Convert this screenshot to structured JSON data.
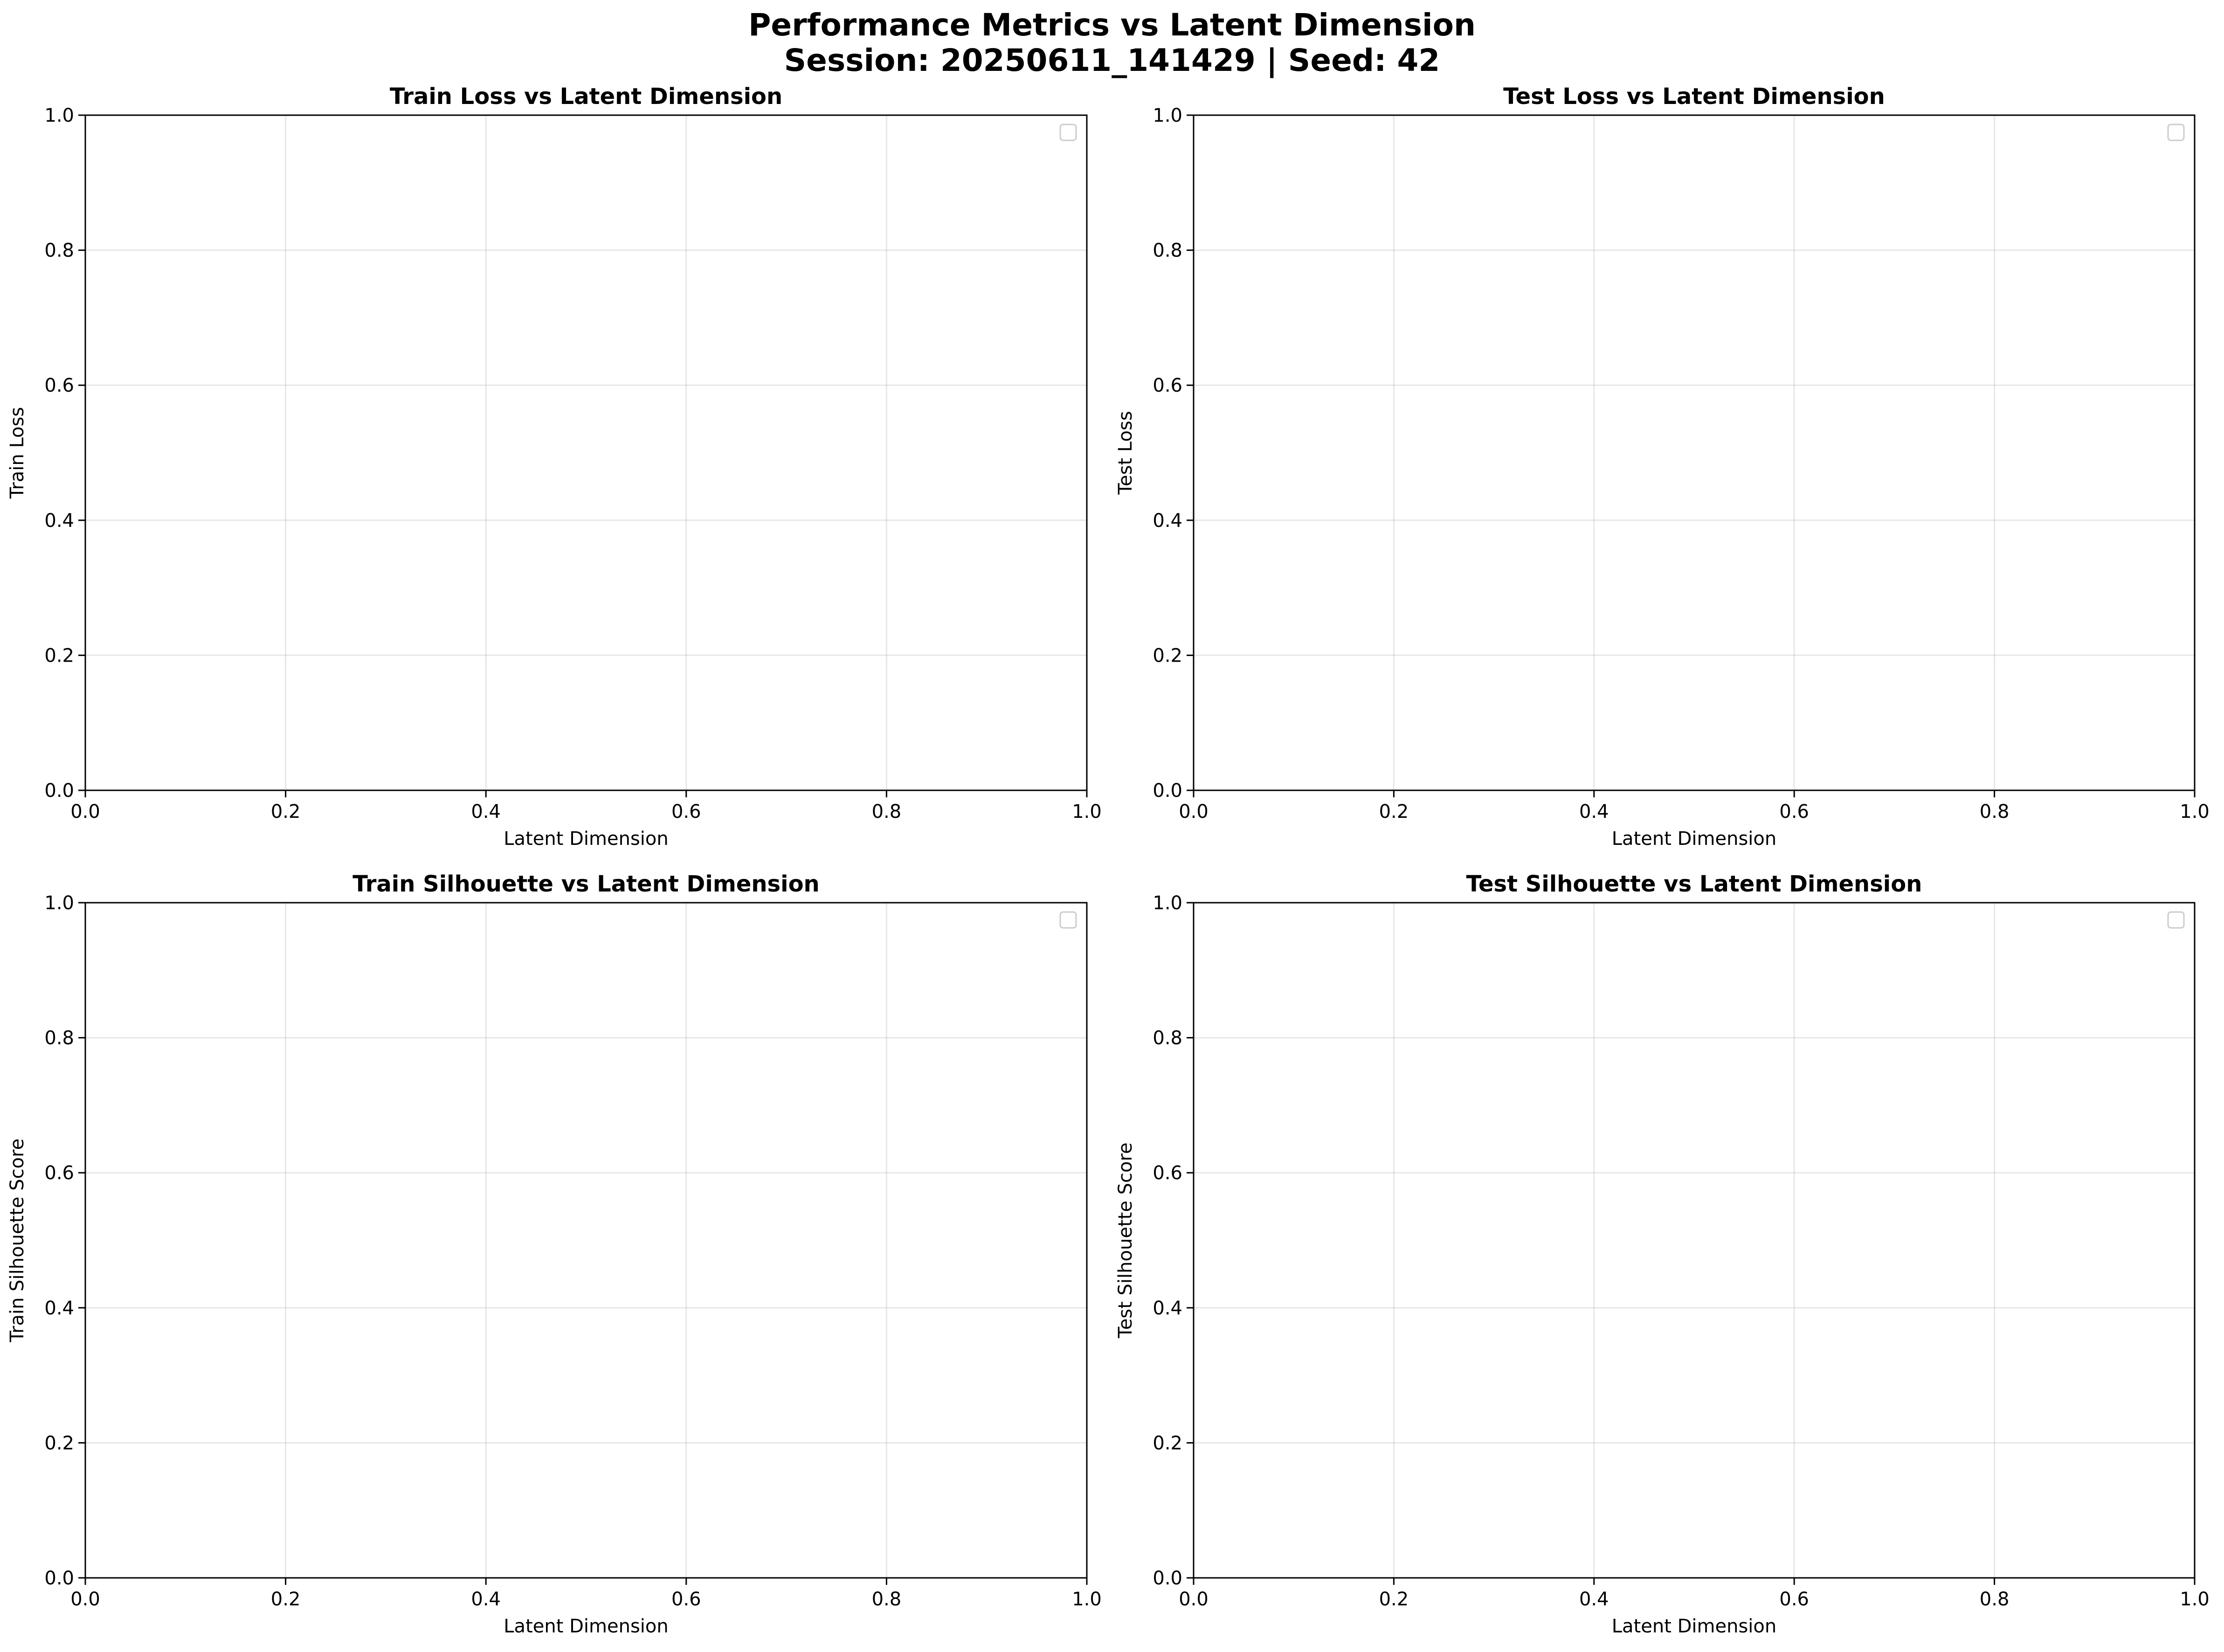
{
  "chart_data": {
    "title_line1": "Performance Metrics vs Latent Dimension",
    "title_line2": "Session: 20250611_141429 | Seed: 42",
    "type": "line",
    "grid": true,
    "legend": "upper right (empty)",
    "panels": [
      {
        "id": "train-loss",
        "title": "Train Loss vs Latent Dimension",
        "xlabel": "Latent Dimension",
        "ylabel": "Train Loss",
        "xlim": [
          0.0,
          1.0
        ],
        "ylim": [
          0.0,
          1.0
        ],
        "xticks": [
          "0.0",
          "0.2",
          "0.4",
          "0.6",
          "0.8",
          "1.0"
        ],
        "yticks": [
          "0.0",
          "0.2",
          "0.4",
          "0.6",
          "0.8",
          "1.0"
        ],
        "series": []
      },
      {
        "id": "test-loss",
        "title": "Test Loss vs Latent Dimension",
        "xlabel": "Latent Dimension",
        "ylabel": "Test Loss",
        "xlim": [
          0.0,
          1.0
        ],
        "ylim": [
          0.0,
          1.0
        ],
        "xticks": [
          "0.0",
          "0.2",
          "0.4",
          "0.6",
          "0.8",
          "1.0"
        ],
        "yticks": [
          "0.0",
          "0.2",
          "0.4",
          "0.6",
          "0.8",
          "1.0"
        ],
        "series": []
      },
      {
        "id": "train-silhouette",
        "title": "Train Silhouette vs Latent Dimension",
        "xlabel": "Latent Dimension",
        "ylabel": "Train Silhouette Score",
        "xlim": [
          0.0,
          1.0
        ],
        "ylim": [
          0.0,
          1.0
        ],
        "xticks": [
          "0.0",
          "0.2",
          "0.4",
          "0.6",
          "0.8",
          "1.0"
        ],
        "yticks": [
          "0.0",
          "0.2",
          "0.4",
          "0.6",
          "0.8",
          "1.0"
        ],
        "series": []
      },
      {
        "id": "test-silhouette",
        "title": "Test Silhouette vs Latent Dimension",
        "xlabel": "Latent Dimension",
        "ylabel": "Test Silhouette Score",
        "xlim": [
          0.0,
          1.0
        ],
        "ylim": [
          0.0,
          1.0
        ],
        "xticks": [
          "0.0",
          "0.2",
          "0.4",
          "0.6",
          "0.8",
          "1.0"
        ],
        "yticks": [
          "0.0",
          "0.2",
          "0.4",
          "0.6",
          "0.8",
          "1.0"
        ],
        "series": []
      }
    ]
  }
}
